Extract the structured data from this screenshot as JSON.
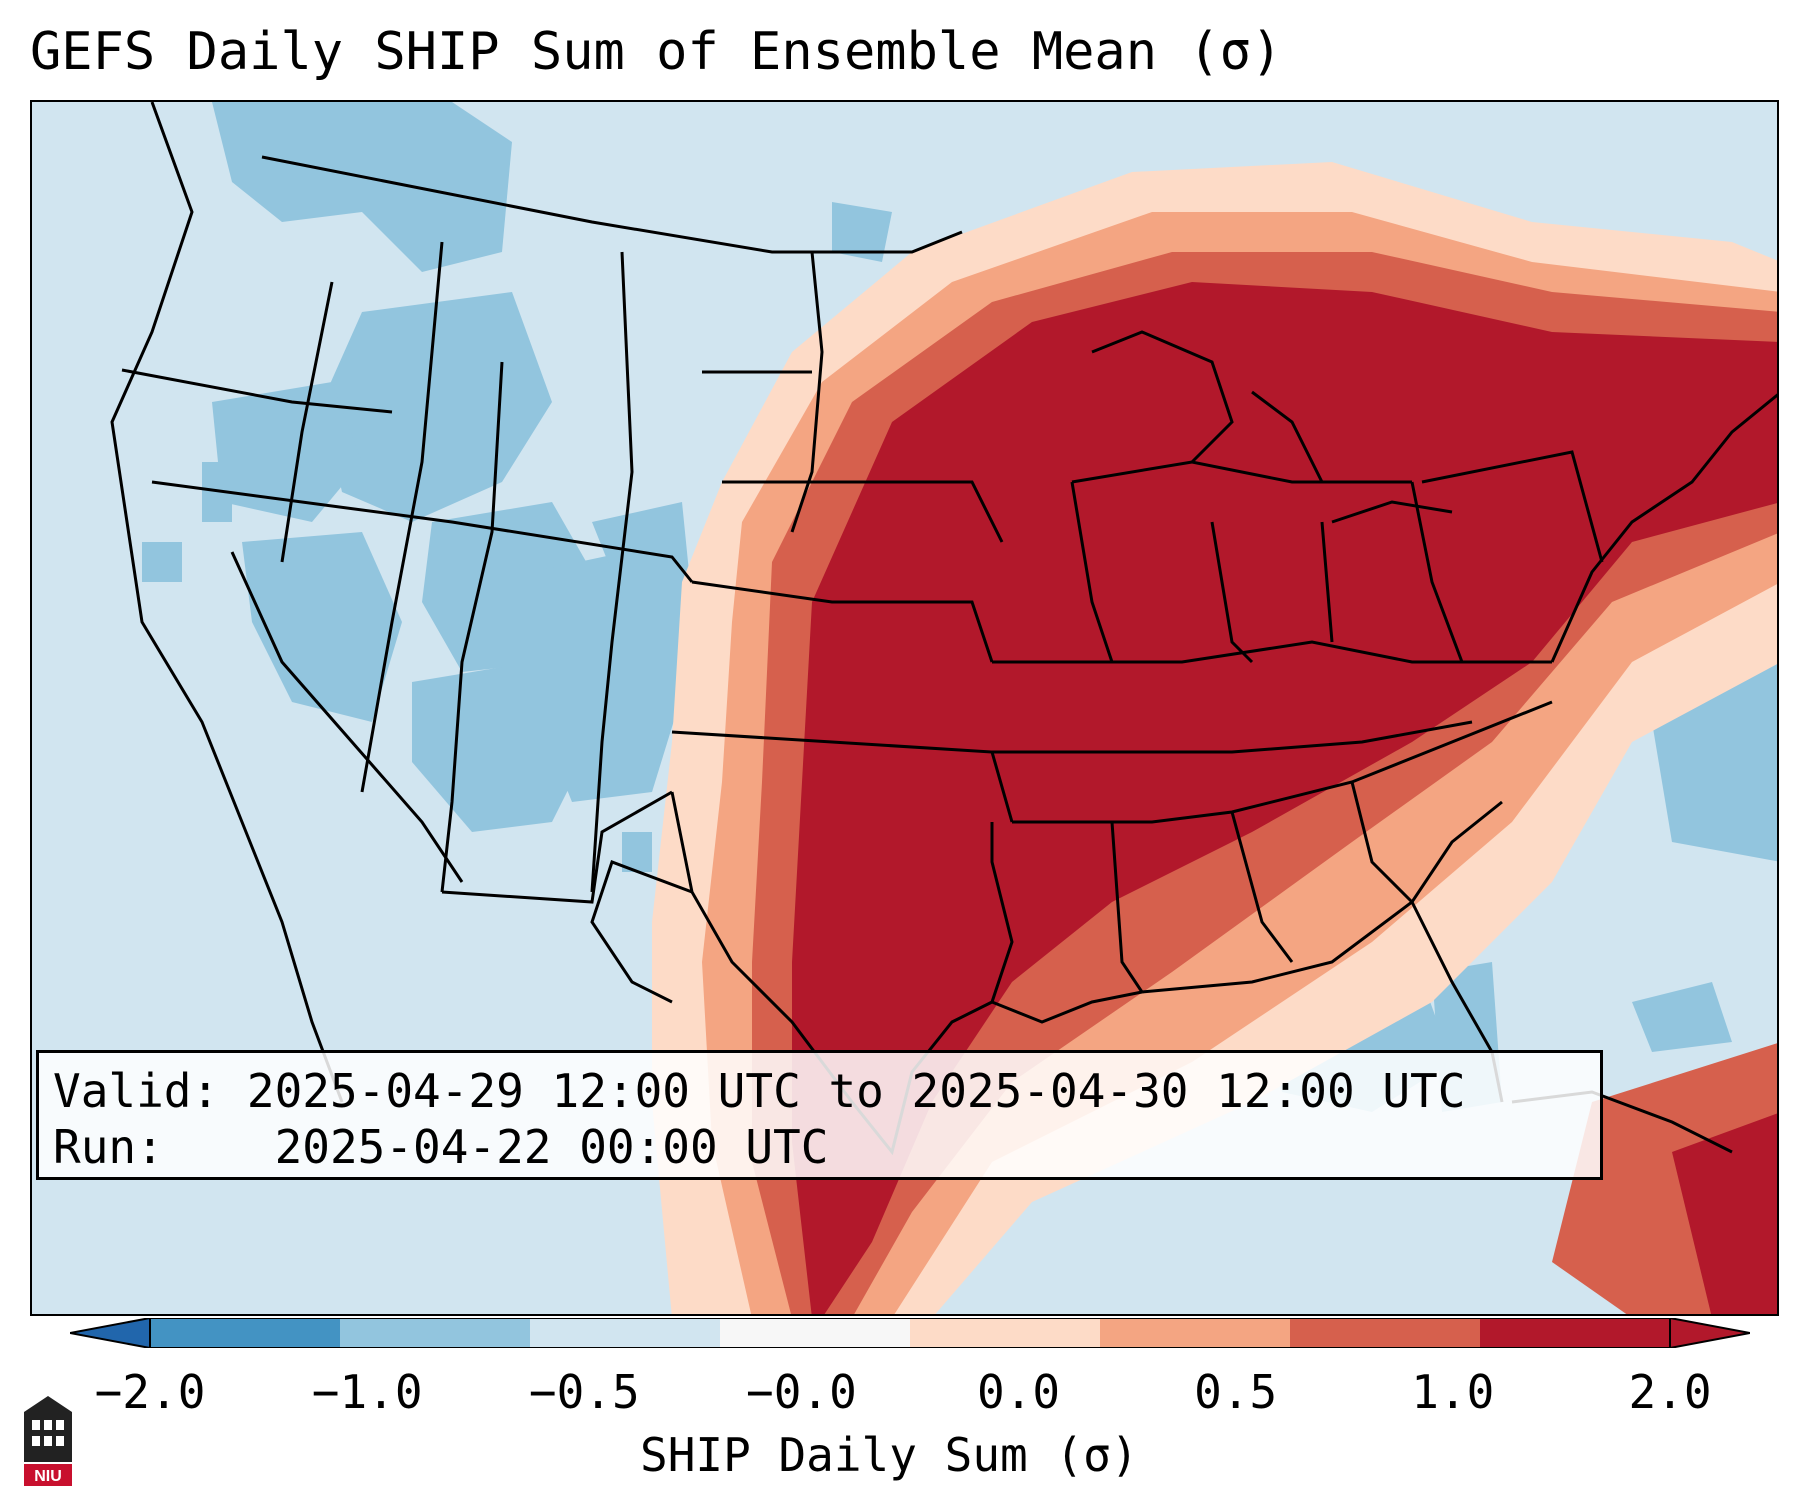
{
  "title": "GEFS Daily SHIP Sum of Ensemble Mean (σ)",
  "info": {
    "valid_label": "Valid:",
    "valid_value": "2025-04-29 12:00 UTC to 2025-04-30 12:00 UTC",
    "run_label": "Run:",
    "run_value": "2025-04-22 00:00 UTC"
  },
  "colorbar": {
    "label": "SHIP Daily Sum (σ)",
    "ticks": [
      "−2.0",
      "−1.0",
      "−0.5",
      "−0.0",
      "0.0",
      "0.5",
      "1.0",
      "2.0"
    ],
    "colors": [
      "#4393c3",
      "#92c5de",
      "#d1e5f0",
      "#f7f7f7",
      "#fddbc7",
      "#f4a582",
      "#d6604d",
      "#b2182b"
    ],
    "extend": "both"
  },
  "map_colors": {
    "very_high": "#b2182b",
    "high": "#d6604d",
    "moderate": "#f4a582",
    "low": "#fddbc7",
    "neutral_low": "#d1e5f0",
    "negative": "#92c5de"
  },
  "logo": {
    "icon": "niu-logo-icon",
    "text": "NIU"
  }
}
